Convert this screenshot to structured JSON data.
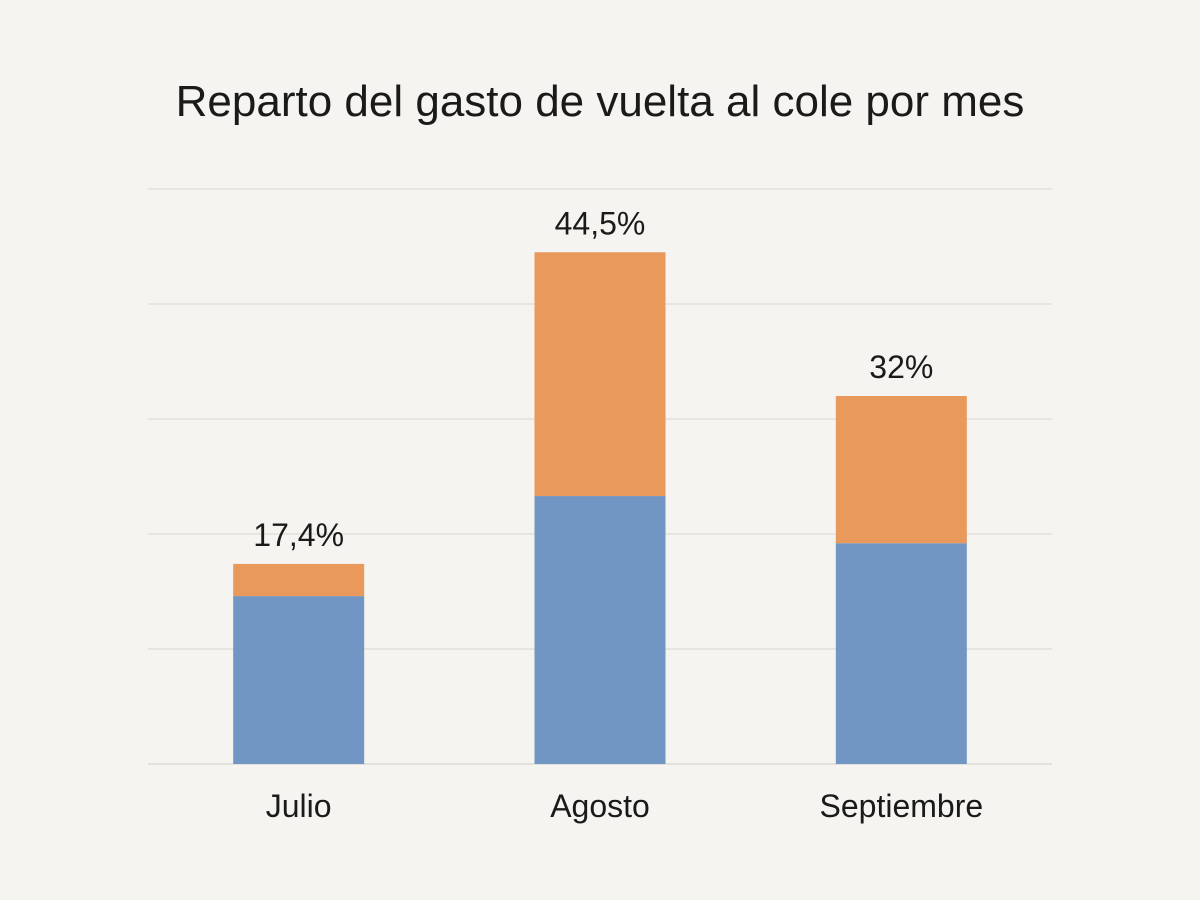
{
  "chart_data": {
    "type": "bar",
    "stacked": true,
    "title": "Reparto del gasto de vuelta al cole por mes",
    "xlabel": "",
    "ylabel": "",
    "categories": [
      "Julio",
      "Agosto",
      "Septiembre"
    ],
    "totals_labels": [
      "17,4%",
      "44,5%",
      "32%"
    ],
    "totals": [
      17.4,
      44.5,
      32
    ],
    "series": [
      {
        "color": "#7296c4",
        "values": [
          14.6,
          23.3,
          19.2
        ]
      },
      {
        "color": "#e8995b",
        "values": [
          2.8,
          21.2,
          12.8
        ]
      }
    ],
    "ylim": [
      0,
      50
    ],
    "grid": true,
    "legend": "none"
  }
}
